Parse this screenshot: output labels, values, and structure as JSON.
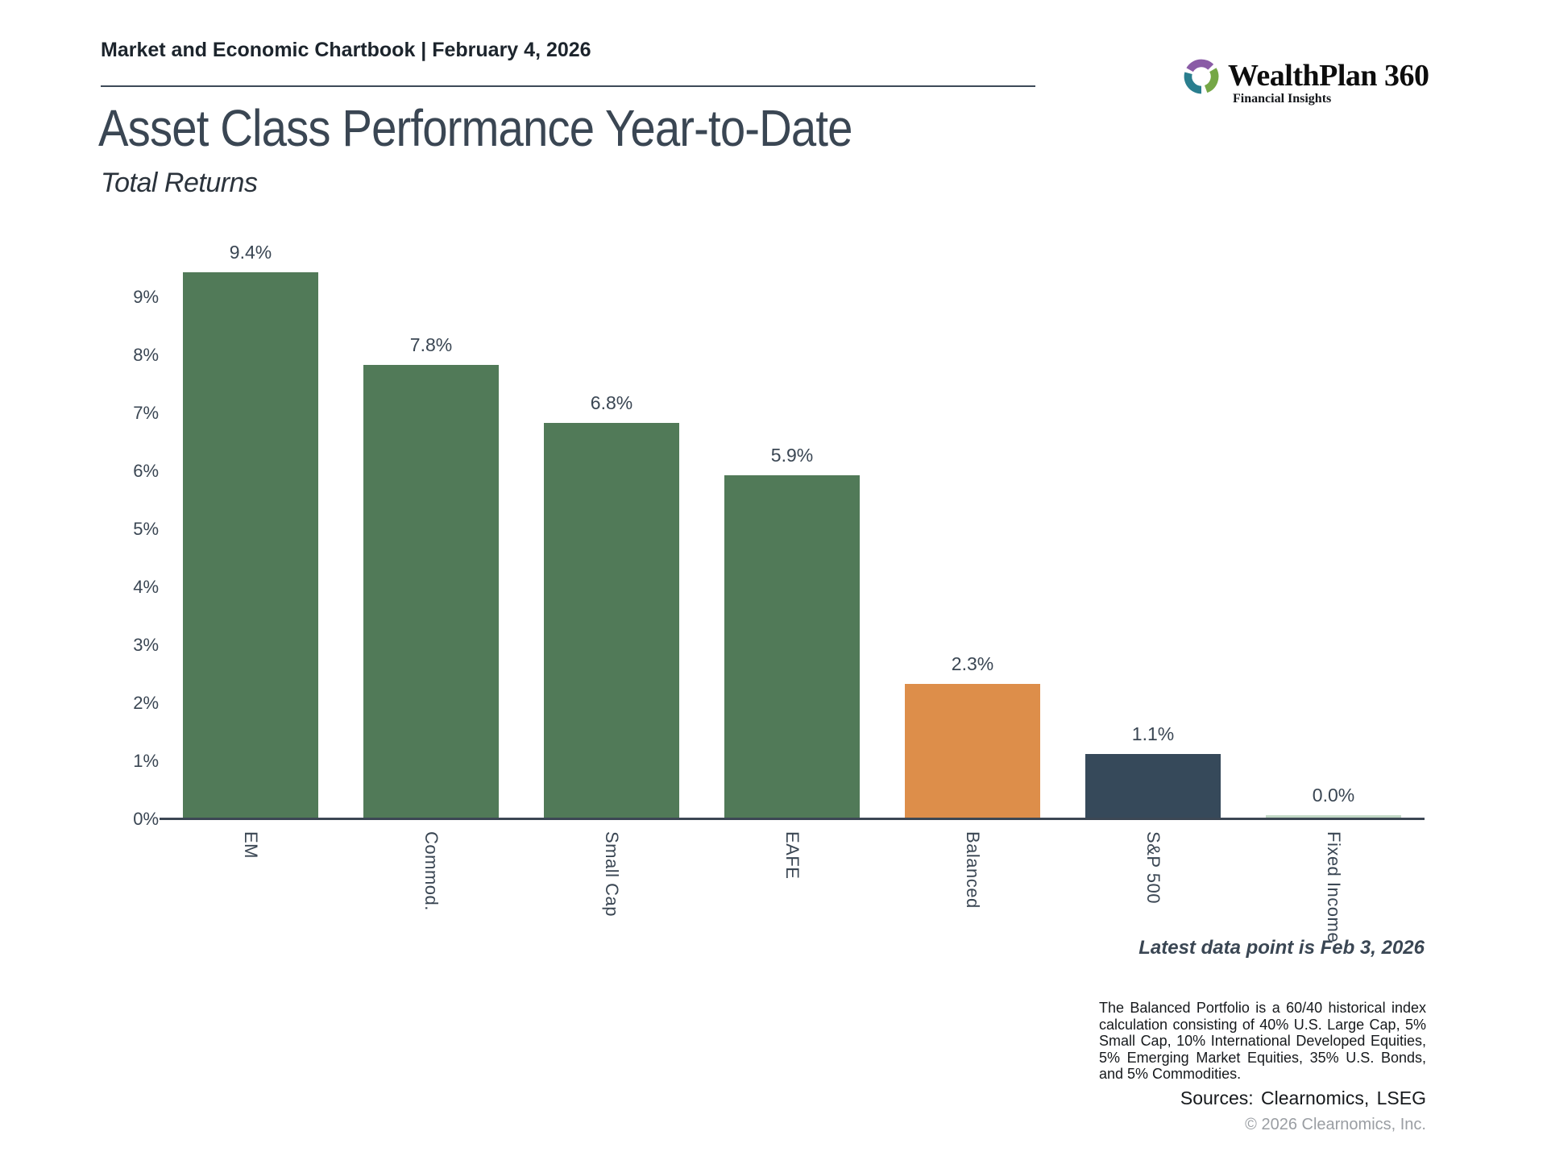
{
  "header": {
    "chartbook_label": "Market and Economic Chartbook | February 4, 2026",
    "brand": {
      "name": "WealthPlan 360",
      "tagline": "Financial Insights",
      "mark_colors": {
        "purple": "#8a5ba6",
        "green": "#75a746",
        "teal": "#2a7e8e"
      }
    }
  },
  "title": "Asset Class Performance Year-to-Date",
  "subtitle": "Total Returns",
  "chart_data": {
    "type": "bar",
    "categories": [
      "EM",
      "Commod.",
      "Small Cap",
      "EAFE",
      "Balanced",
      "S&P 500",
      "Fixed Income"
    ],
    "values": [
      9.4,
      7.8,
      6.8,
      5.9,
      2.3,
      1.1,
      0.0
    ],
    "value_labels": [
      "9.4%",
      "7.8%",
      "6.8%",
      "5.9%",
      "2.3%",
      "1.1%",
      "0.0%"
    ],
    "bar_colors": [
      "#517a58",
      "#517a58",
      "#517a58",
      "#517a58",
      "#dd8e4a",
      "#36495a",
      "#c2d8c5"
    ],
    "title": "Asset Class Performance Year-to-Date",
    "subtitle": "Total Returns",
    "xlabel": "",
    "ylabel": "",
    "ylim": [
      0,
      9.9
    ],
    "ytick_labels": [
      "0%",
      "1%",
      "2%",
      "3%",
      "4%",
      "5%",
      "6%",
      "7%",
      "8%",
      "9%"
    ],
    "grid": false,
    "legend_position": "none"
  },
  "annotations": {
    "latest_data": "Latest data point is Feb 3, 2026"
  },
  "footer": {
    "note": "The Balanced Portfolio is a 60/40 historical index calculation consisting of 40% U.S. Large Cap, 5% Small Cap, 10% International Developed Equities, 5% Emerging Market Equities, 35% U.S. Bonds, and 5% Commodities.",
    "sources": "Sources: Clearnomics, LSEG",
    "copyright": "© 2026 Clearnomics, Inc."
  },
  "colors": {
    "bar_green": "#517a58",
    "bar_orange": "#dd8e4a",
    "bar_navy": "#36495a",
    "bar_light_green": "#c2d8c5",
    "text_slate": "#3a4653"
  }
}
